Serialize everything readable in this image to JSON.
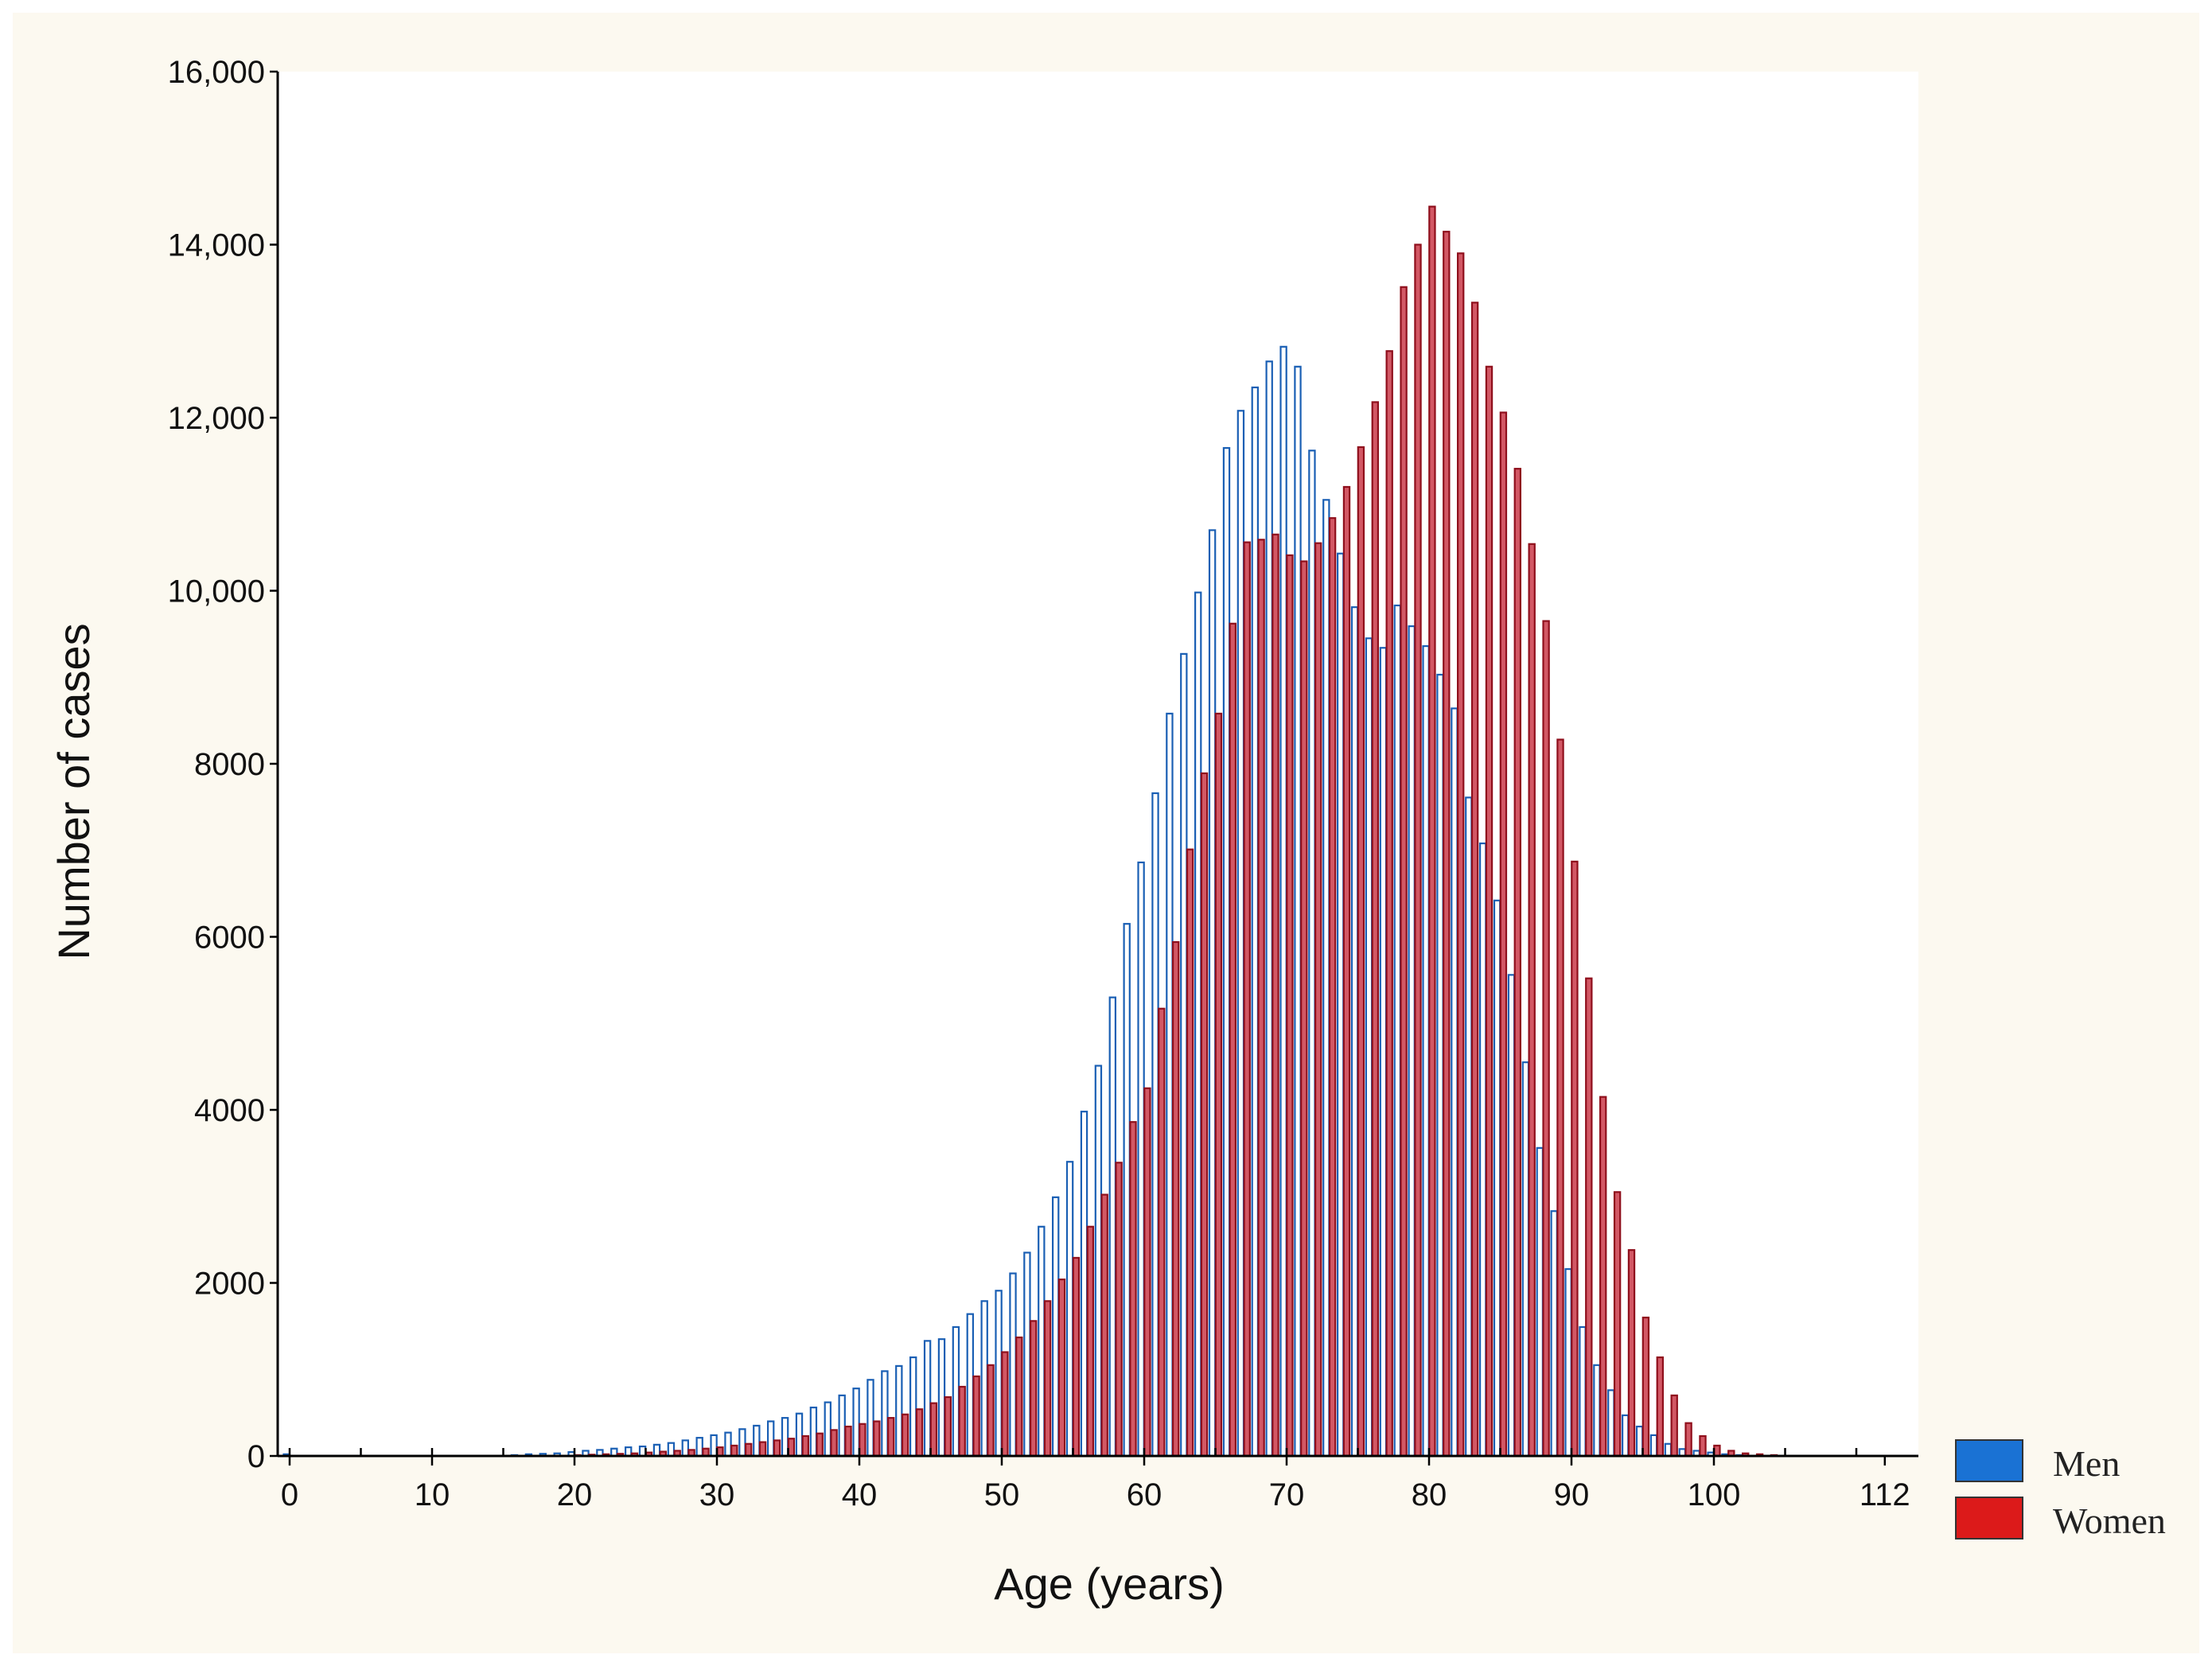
{
  "chart_data": {
    "type": "bar",
    "xlabel": "Age (years)",
    "ylabel": "Number of cases",
    "xlim": [
      0,
      113
    ],
    "ylim": [
      0,
      16000
    ],
    "x_ticks": [
      0,
      10,
      20,
      30,
      40,
      50,
      60,
      70,
      80,
      90,
      100,
      112
    ],
    "y_ticks": [
      0,
      2000,
      4000,
      6000,
      8000,
      10000,
      12000,
      14000,
      16000
    ],
    "y_tick_labels": [
      "0",
      "2000",
      "4000",
      "6000",
      "8000",
      "10,000",
      "12,000",
      "14,000",
      "16,000"
    ],
    "x": [
      0,
      1,
      2,
      3,
      4,
      5,
      6,
      7,
      8,
      9,
      10,
      11,
      12,
      13,
      14,
      15,
      16,
      17,
      18,
      19,
      20,
      21,
      22,
      23,
      24,
      25,
      26,
      27,
      28,
      29,
      30,
      31,
      32,
      33,
      34,
      35,
      36,
      37,
      38,
      39,
      40,
      41,
      42,
      43,
      44,
      45,
      46,
      47,
      48,
      49,
      50,
      51,
      52,
      53,
      54,
      55,
      56,
      57,
      58,
      59,
      60,
      61,
      62,
      63,
      64,
      65,
      66,
      67,
      68,
      69,
      70,
      71,
      72,
      73,
      74,
      75,
      76,
      77,
      78,
      79,
      80,
      81,
      82,
      83,
      84,
      85,
      86,
      87,
      88,
      89,
      90,
      91,
      92,
      93,
      94,
      95,
      96,
      97,
      98,
      99,
      100,
      101,
      102,
      103,
      104,
      105
    ],
    "series": [
      {
        "name": "Men",
        "color": "#1a72d4",
        "values": [
          20,
          0,
          0,
          0,
          0,
          0,
          0,
          0,
          0,
          0,
          0,
          0,
          0,
          0,
          0,
          0,
          10,
          20,
          25,
          30,
          45,
          60,
          70,
          85,
          100,
          110,
          130,
          150,
          180,
          210,
          240,
          270,
          310,
          350,
          400,
          440,
          490,
          560,
          620,
          700,
          780,
          880,
          980,
          1040,
          1140,
          1330,
          1350,
          1490,
          1640,
          1790,
          1910,
          2110,
          2350,
          2650,
          2990,
          3400,
          3980,
          4510,
          5300,
          6150,
          6860,
          7660,
          8580,
          9270,
          9980,
          10700,
          11650,
          12080,
          12350,
          12650,
          12820,
          12590,
          11620,
          11050,
          10430,
          9810,
          9450,
          9340,
          9830,
          9590,
          9360,
          9030,
          8640,
          7610,
          7080,
          6420,
          5560,
          4550,
          3560,
          2830,
          2160,
          1490,
          1050,
          760,
          470,
          340,
          240,
          140,
          80,
          60,
          40,
          20,
          10,
          0,
          0,
          0
        ]
      },
      {
        "name": "Women",
        "color": "#dc1a1a",
        "values": [
          0,
          0,
          0,
          0,
          0,
          0,
          0,
          0,
          0,
          0,
          0,
          0,
          0,
          0,
          0,
          0,
          0,
          0,
          0,
          0,
          10,
          15,
          20,
          25,
          30,
          40,
          50,
          60,
          70,
          85,
          100,
          120,
          140,
          160,
          180,
          200,
          230,
          260,
          300,
          340,
          370,
          400,
          440,
          480,
          540,
          610,
          680,
          800,
          920,
          1050,
          1200,
          1370,
          1560,
          1790,
          2040,
          2290,
          2650,
          3020,
          3390,
          3860,
          4250,
          5170,
          5940,
          7010,
          7890,
          8580,
          9620,
          10560,
          10590,
          10650,
          10410,
          10340,
          10550,
          10840,
          11200,
          11660,
          12180,
          12770,
          13510,
          14000,
          14440,
          14150,
          13900,
          13330,
          12590,
          12060,
          11410,
          10540,
          9650,
          8280,
          6870,
          5520,
          4150,
          3050,
          2380,
          1600,
          1140,
          700,
          380,
          230,
          120,
          60,
          30,
          20,
          10,
          0
        ]
      }
    ],
    "legend": {
      "placement": "right",
      "entries": [
        "Men",
        "Women"
      ]
    },
    "grid": false
  }
}
